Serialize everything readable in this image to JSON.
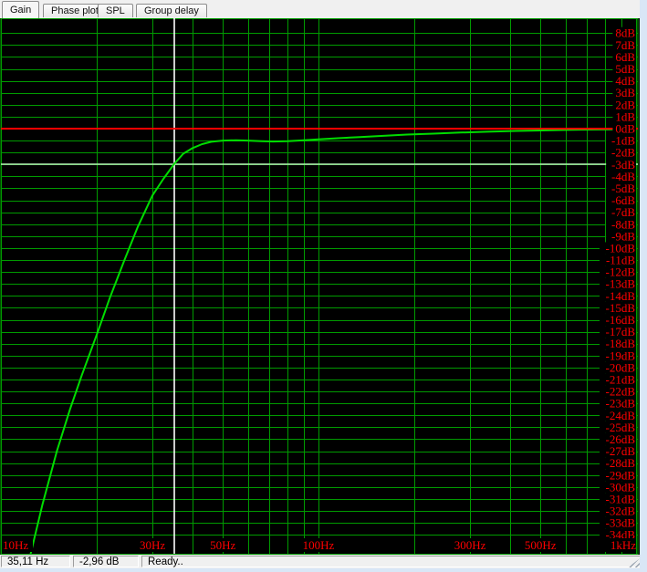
{
  "tabs": [
    {
      "label": "Gain",
      "active": true
    },
    {
      "label": "Phase plot",
      "active": false
    },
    {
      "label": "SPL",
      "active": false
    },
    {
      "label": "Group delay",
      "active": false
    }
  ],
  "statusbar": {
    "frequency": "35,11 Hz",
    "gain": "-2,96 dB",
    "message": "Ready.."
  },
  "chart_data": {
    "type": "line",
    "title": "",
    "xlabel": "",
    "ylabel": "",
    "x_axis": {
      "scale": "log",
      "min_hz": 10,
      "max_hz": 1000,
      "gridline_hz": [
        10,
        20,
        30,
        40,
        50,
        60,
        70,
        80,
        90,
        100,
        200,
        300,
        400,
        500,
        600,
        700,
        800,
        900,
        1000
      ],
      "tick_labels": [
        {
          "label": "10Hz",
          "hz": 10
        },
        {
          "label": "30Hz",
          "hz": 30
        },
        {
          "label": "50Hz",
          "hz": 50
        },
        {
          "label": "100Hz",
          "hz": 100
        },
        {
          "label": "300Hz",
          "hz": 300
        },
        {
          "label": "500Hz",
          "hz": 500
        },
        {
          "label": "1kHz",
          "hz": 1000
        }
      ]
    },
    "y_axis": {
      "unit": "dB",
      "max": 8,
      "min": -34,
      "step": 1,
      "labels": [
        "8dB",
        "7dB",
        "6dB",
        "5dB",
        "4dB",
        "3dB",
        "2dB",
        "1dB",
        "0dB",
        "-1dB",
        "-2dB",
        "-3dB",
        "-4dB",
        "-5dB",
        "-6dB",
        "-7dB",
        "-8dB",
        "-9dB",
        "-10dB",
        "-11dB",
        "-12dB",
        "-13dB",
        "-14dB",
        "-15dB",
        "-16dB",
        "-17dB",
        "-18dB",
        "-19dB",
        "-20dB",
        "-21dB",
        "-22dB",
        "-23dB",
        "-24dB",
        "-25dB",
        "-26dB",
        "-27dB",
        "-28dB",
        "-29dB",
        "-30dB",
        "-31dB",
        "-32dB",
        "-33dB",
        "-34dB"
      ]
    },
    "reference_lines": [
      {
        "name": "zero-db-line",
        "type": "horizontal",
        "value_db": 0,
        "color": "#ff0000"
      },
      {
        "name": "minus-3db-line",
        "type": "horizontal",
        "value_db": -3,
        "color": "#b8f0b8"
      },
      {
        "name": "cutoff-cursor-line",
        "type": "vertical",
        "value_hz": 35.11,
        "color": "#ffffff"
      }
    ],
    "series": [
      {
        "name": "gain-response",
        "color": "#00dd00",
        "points_hz_db": [
          [
            12.3,
            -36.0
          ],
          [
            13.5,
            -31.5
          ],
          [
            15,
            -27.0
          ],
          [
            16.5,
            -23.5
          ],
          [
            18,
            -20.6
          ],
          [
            20,
            -17.3
          ],
          [
            22,
            -14.2
          ],
          [
            24.5,
            -11.0
          ],
          [
            27,
            -8.2
          ],
          [
            30,
            -5.6
          ],
          [
            32.5,
            -4.2
          ],
          [
            35.11,
            -2.96
          ],
          [
            37.5,
            -2.1
          ],
          [
            40,
            -1.65
          ],
          [
            43,
            -1.3
          ],
          [
            46,
            -1.1
          ],
          [
            50,
            -1.0
          ],
          [
            55,
            -0.97
          ],
          [
            60,
            -1.0
          ],
          [
            66,
            -1.05
          ],
          [
            72,
            -1.08
          ],
          [
            80,
            -1.05
          ],
          [
            90,
            -0.98
          ],
          [
            100,
            -0.9
          ],
          [
            115,
            -0.8
          ],
          [
            135,
            -0.7
          ],
          [
            160,
            -0.6
          ],
          [
            190,
            -0.5
          ],
          [
            230,
            -0.42
          ],
          [
            280,
            -0.33
          ],
          [
            340,
            -0.26
          ],
          [
            420,
            -0.19
          ],
          [
            500,
            -0.15
          ],
          [
            600,
            -0.11
          ],
          [
            720,
            -0.08
          ],
          [
            850,
            -0.06
          ],
          [
            1000,
            -0.05
          ]
        ]
      }
    ],
    "colors": {
      "background": "#000000",
      "grid": "#009b00",
      "axis_labels": "#ff0000"
    },
    "legend": "none",
    "grid": true
  }
}
